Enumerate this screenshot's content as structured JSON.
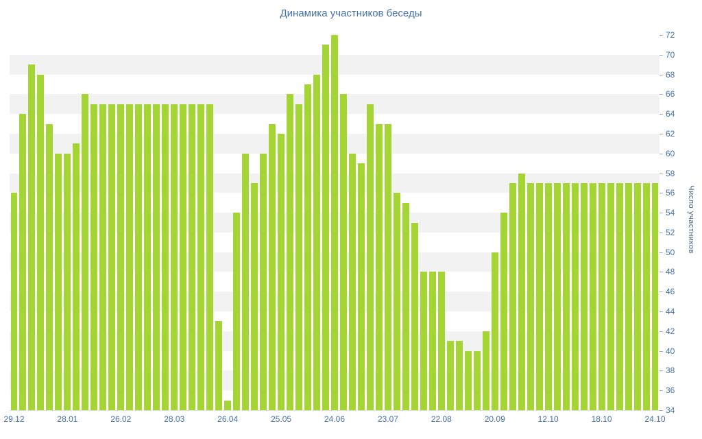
{
  "chart_data": {
    "type": "bar",
    "title": "Динамика участников беседы",
    "xlabel": "",
    "ylabel": "Число участников",
    "ylim": [
      34,
      72
    ],
    "ytick_step": 2,
    "y_ticks": [
      34,
      36,
      38,
      40,
      42,
      44,
      46,
      48,
      50,
      52,
      54,
      56,
      58,
      60,
      62,
      64,
      66,
      68,
      70,
      72
    ],
    "x_labels": [
      "29.12",
      "28.01",
      "26.02",
      "28.03",
      "26.04",
      "25.05",
      "24.06",
      "23.07",
      "22.08",
      "20.09",
      "12.10",
      "18.10",
      "24.10"
    ],
    "x_label_indices": [
      0,
      6,
      12,
      18,
      24,
      30,
      36,
      42,
      48,
      54,
      60,
      66,
      72
    ],
    "values": [
      56,
      64,
      69,
      68,
      63,
      60,
      60,
      61,
      66,
      65,
      65,
      65,
      65,
      65,
      65,
      65,
      65,
      65,
      65,
      65,
      65,
      65,
      65,
      43,
      35,
      54,
      60,
      57,
      60,
      63,
      62,
      66,
      65,
      67,
      68,
      71,
      72,
      66,
      60,
      59,
      65,
      63,
      63,
      56,
      55,
      53,
      48,
      48,
      48,
      41,
      41,
      40,
      40,
      42,
      50,
      54,
      57,
      58,
      57,
      57,
      57,
      57,
      57,
      57,
      57,
      57,
      57,
      57,
      57,
      57,
      57,
      57,
      57
    ],
    "bar_color": "#a5d435",
    "band_color": "#f2f2f2",
    "title_color": "#4572a7",
    "axis_text_color": "#4572a7",
    "ylabel_color": "#4a6785",
    "grid": "alternating-bands",
    "legend": "off"
  }
}
